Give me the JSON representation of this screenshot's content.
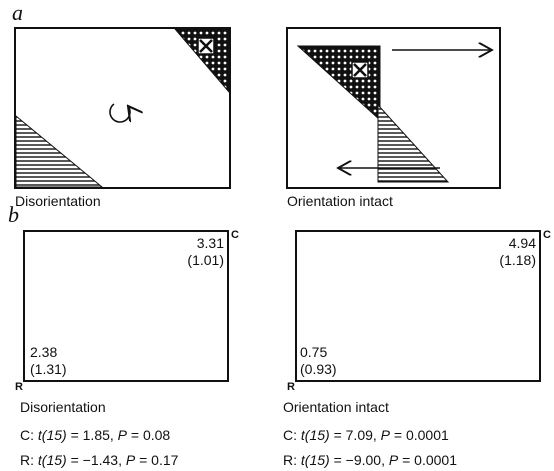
{
  "panel_a": {
    "label": "a",
    "left": {
      "caption": "Disorientation"
    },
    "right": {
      "caption": "Orientation intact"
    }
  },
  "panel_b": {
    "label": "b",
    "left": {
      "corner_c": "C",
      "corner_r": "R",
      "c_mean": "3.31",
      "c_sd": "(1.01)",
      "r_mean": "2.38",
      "r_sd": "(1.31)",
      "caption": "Disorientation",
      "stats": [
        [
          {
            "text": "C: "
          },
          {
            "text": "t(15)",
            "italic": true
          },
          {
            "text": " = 1.85, "
          },
          {
            "text": "P",
            "italic": true
          },
          {
            "text": " = 0.08"
          }
        ],
        [
          {
            "text": "R: "
          },
          {
            "text": "t(15)",
            "italic": true
          },
          {
            "text": " = −1.43, "
          },
          {
            "text": "P",
            "italic": true
          },
          {
            "text": " = 0.17"
          }
        ]
      ]
    },
    "right": {
      "corner_c": "C",
      "corner_r": "R",
      "c_mean": "4.94",
      "c_sd": "(1.18)",
      "r_mean": "0.75",
      "r_sd": "(0.93)",
      "caption": "Orientation intact",
      "stats": [
        [
          {
            "text": "C: "
          },
          {
            "text": "t(15)",
            "italic": true
          },
          {
            "text": " = 7.09, "
          },
          {
            "text": "P",
            "italic": true
          },
          {
            "text": " = 0.0001"
          }
        ],
        [
          {
            "text": "R: "
          },
          {
            "text": "t(15)",
            "italic": true
          },
          {
            "text": " = −9.00, "
          },
          {
            "text": "P",
            "italic": true
          },
          {
            "text": " = 0.0001"
          }
        ]
      ]
    }
  }
}
